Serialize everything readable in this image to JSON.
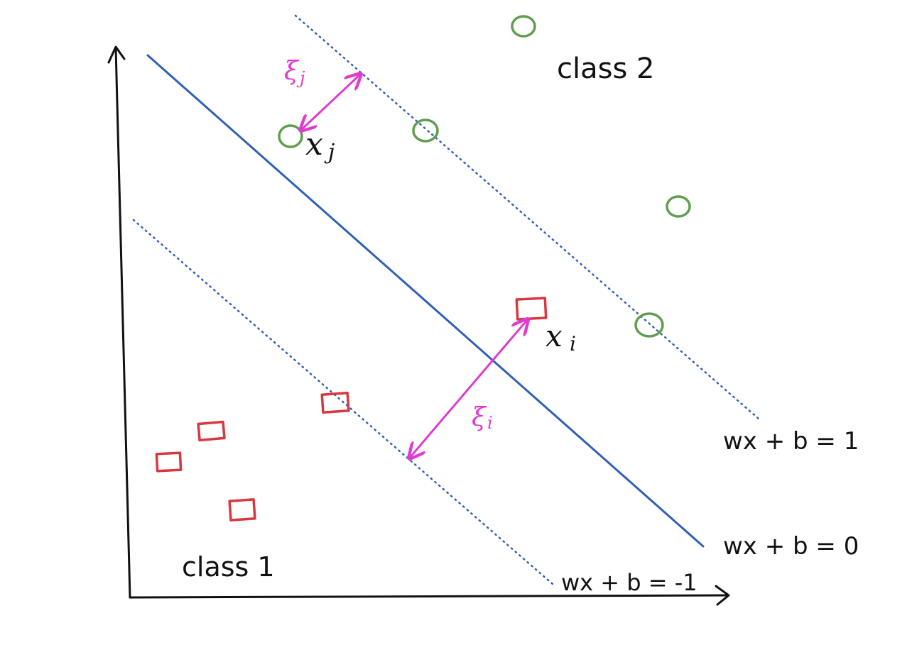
{
  "labels": {
    "class_2": "class 2",
    "class_1": "class 1",
    "x_j": "x",
    "x_j_sub": "j",
    "x_i": "x",
    "x_i_sub": "i",
    "xi_j": "ξ",
    "xi_j_sub": "j",
    "xi_i": "ξ",
    "xi_i_sub": "i",
    "plane_pos": "wx + b = 1",
    "plane_zero": "wx + b = 0",
    "plane_neg": "wx + b = -1"
  },
  "colors": {
    "axis": "#111111",
    "hyperplane": "#2f5fb8",
    "margin": "#2f5fb8",
    "class_1_marker": "#d9363e",
    "class_2_marker": "#5f9e4f",
    "slack_arrow": "#e03bd0",
    "slack_text": "#e03bd0",
    "text": "#111111"
  },
  "markers": {
    "class_1": "square",
    "class_2": "circle"
  }
}
